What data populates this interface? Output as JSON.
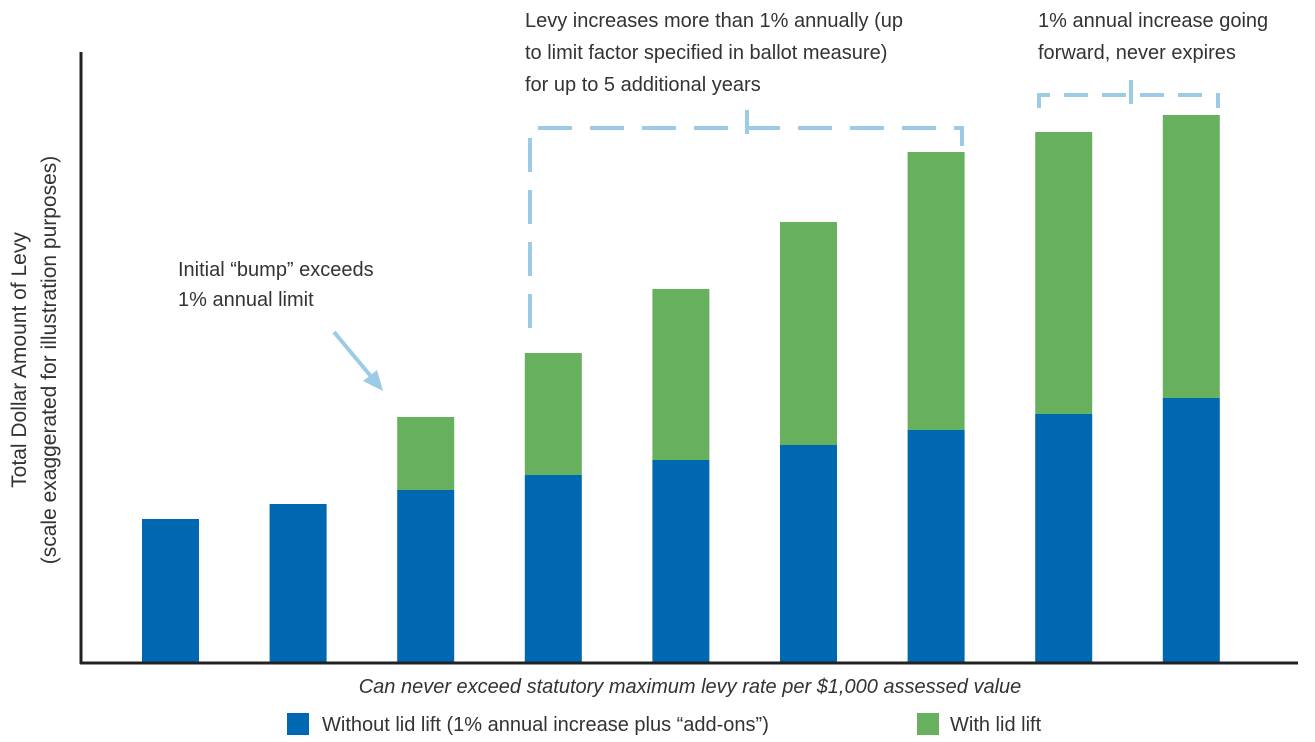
{
  "chart_data": {
    "type": "bar",
    "stacked": true,
    "categories": [
      "",
      "",
      "",
      "",
      "",
      "",
      "",
      "",
      ""
    ],
    "series": [
      {
        "name": "Without lid lift (1% annual increase plus “add-ons”)",
        "color": "#0067B1",
        "values": [
          143,
          158,
          172,
          187,
          202,
          217,
          232,
          248,
          264
        ]
      },
      {
        "name": "With lid lift",
        "color": "#67B05E",
        "values": [
          0,
          0,
          73,
          122,
          171,
          223,
          278,
          282,
          283
        ]
      }
    ],
    "ylim": [
      0,
      600
    ],
    "ylabel": [
      "Total Dollar Amount of Levy",
      "(scale exaggerated for illustration purposes)"
    ],
    "xlabel": "Can never exceed statutory maximum levy rate per $1,000 assessed value",
    "annotations": [
      {
        "lines": [
          "Initial “bump” exceeds",
          "1% annual limit"
        ]
      },
      {
        "lines": [
          "Levy increases more than 1% annually (up",
          "to limit factor specified in ballot measure)",
          "for up to 5 additional years"
        ]
      },
      {
        "lines": [
          "1% annual increase going",
          "forward, never expires"
        ]
      }
    ],
    "grid": false,
    "legend": "bottom",
    "annotation_color": "#9DCAE5",
    "axis_color": "#222222"
  }
}
